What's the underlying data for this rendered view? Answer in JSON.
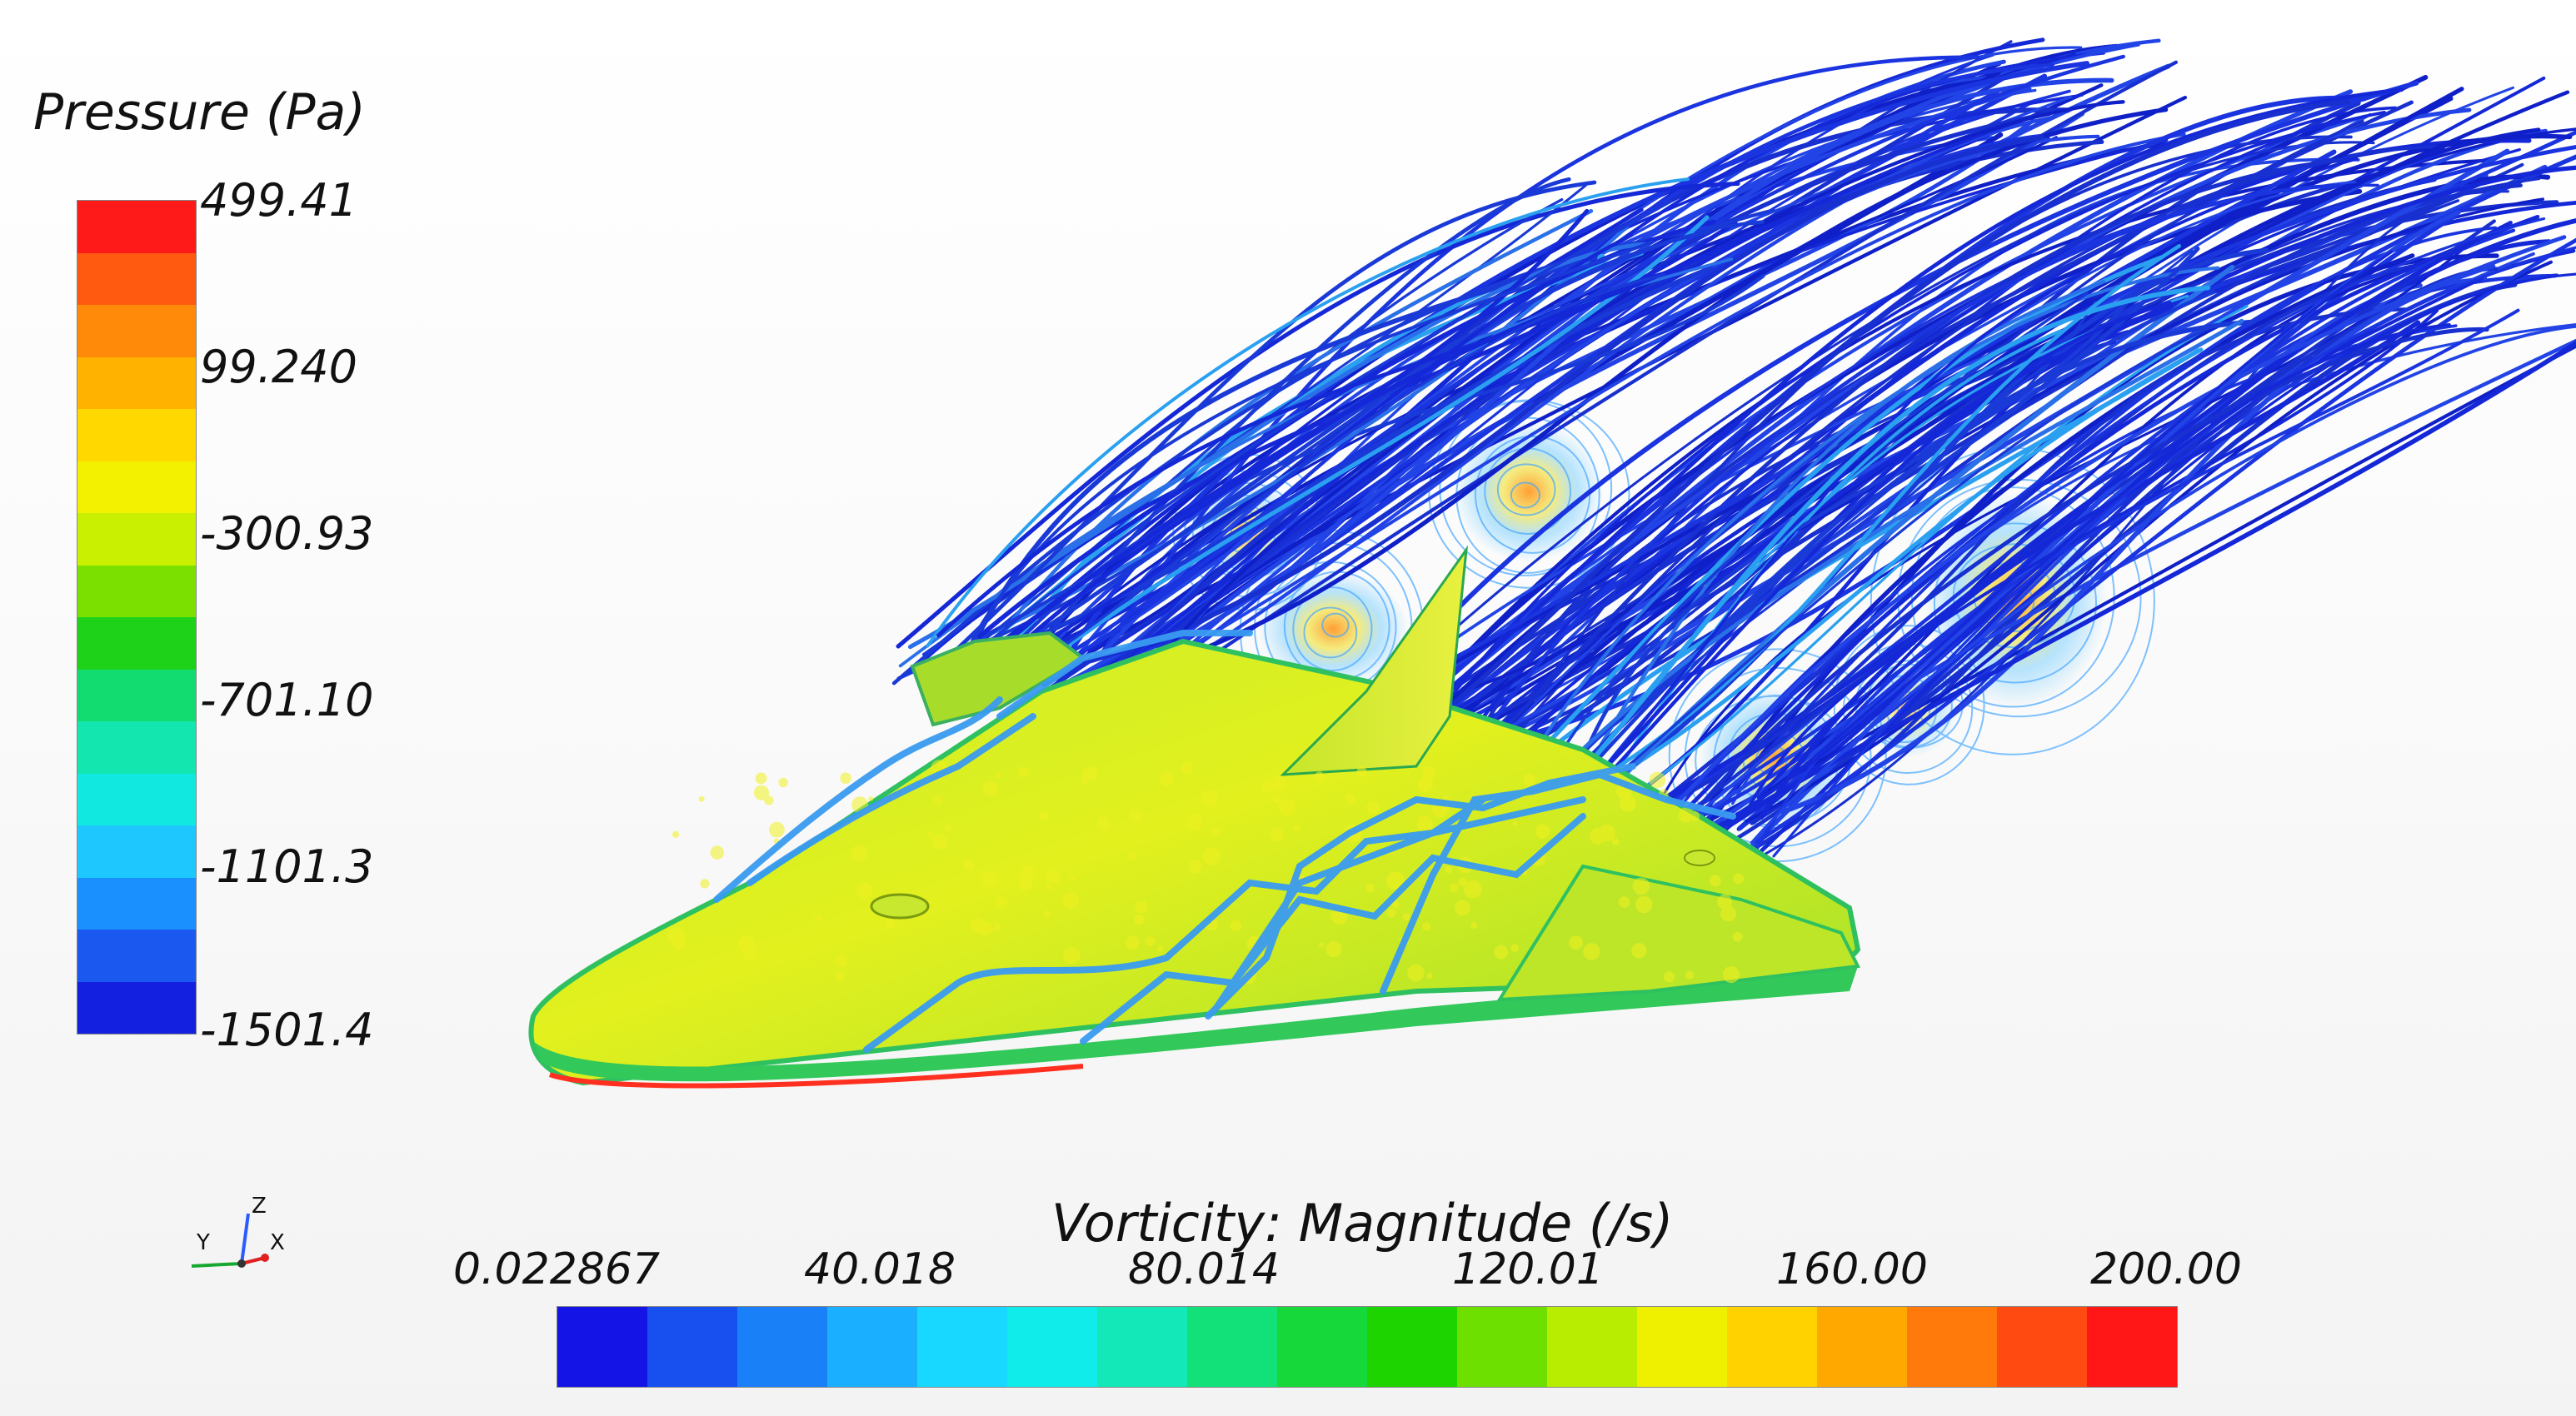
{
  "viewport": {
    "background": "#f6f6f6"
  },
  "scene": {
    "model": "delta-wing-spaceplane",
    "surface_color": "#d7ee2a",
    "streamline_color": "#1a2fd6"
  },
  "pressure_legend": {
    "title": "Pressure (Pa)",
    "ticks": [
      "499.41",
      "99.240",
      "-300.93",
      "-701.10",
      "-1101.3",
      "-1501.4"
    ],
    "colors": [
      "#ff1a1a",
      "#ff5a10",
      "#ff8a0a",
      "#ffb300",
      "#ffd800",
      "#f3f000",
      "#c9f000",
      "#7be000",
      "#1ed21a",
      "#12dc70",
      "#14e6b0",
      "#10e8e0",
      "#1ec8ff",
      "#1a90ff",
      "#1a58f0",
      "#1420e0"
    ]
  },
  "vorticity_legend": {
    "title": "Vorticity: Magnitude (/s)",
    "ticks": [
      "0.022867",
      "40.018",
      "80.014",
      "120.01",
      "160.00",
      "200.00"
    ],
    "colors": [
      "#1414e6",
      "#1850f0",
      "#1a80f8",
      "#1ab0ff",
      "#18d8ff",
      "#10ecea",
      "#12e8b8",
      "#12e078",
      "#16d83a",
      "#1ed400",
      "#6ee000",
      "#b8ec00",
      "#eef000",
      "#ffd200",
      "#ffa800",
      "#ff7a0a",
      "#ff4a12",
      "#ff1616"
    ]
  },
  "axis_triad": {
    "labels": [
      "Y",
      "Z",
      "X"
    ]
  }
}
